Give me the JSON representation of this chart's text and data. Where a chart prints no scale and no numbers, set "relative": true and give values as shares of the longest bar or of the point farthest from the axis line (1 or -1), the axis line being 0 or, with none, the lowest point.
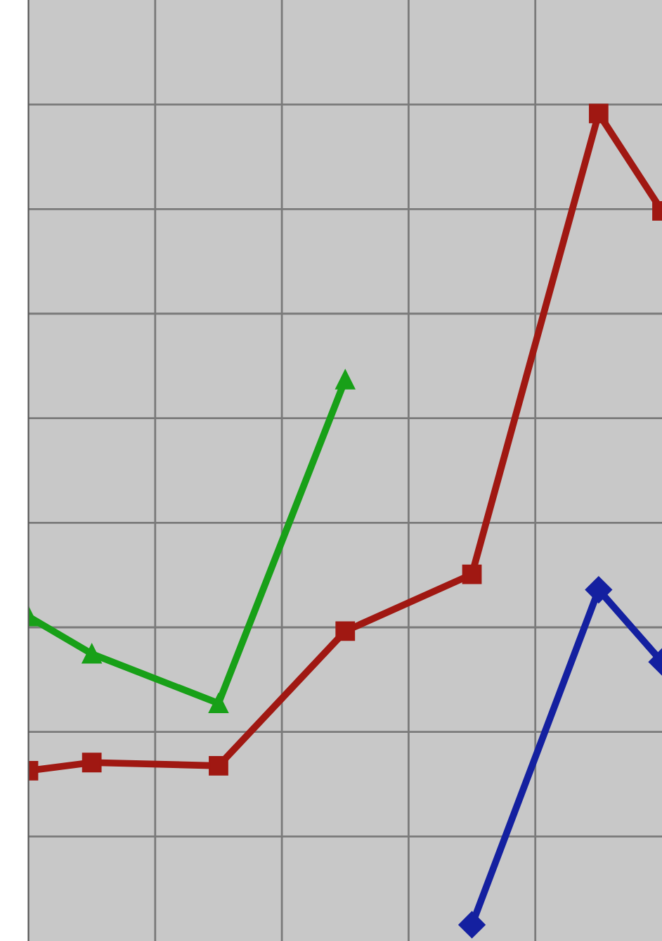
{
  "chart_data": {
    "type": "line",
    "relative": true,
    "grid": true,
    "categories": [
      null,
      null,
      null,
      null,
      null,
      null,
      null,
      null,
      null,
      null,
      null
    ],
    "series": [
      {
        "color": "#a01812",
        "marker": "square",
        "values": [
          0.19,
          0.2,
          null,
          0.196,
          null,
          0.362,
          null,
          0.432,
          null,
          1,
          0.88
        ]
      },
      {
        "color": "#18a018",
        "marker": "triangle",
        "values": [
          0.38,
          0.334,
          null,
          0.273,
          null,
          0.672,
          null,
          null,
          null,
          null,
          null
        ]
      },
      {
        "color": "#1420a0",
        "marker": "diamond",
        "values": [
          null,
          null,
          null,
          null,
          null,
          null,
          null,
          0,
          null,
          0.413,
          0.324
        ]
      }
    ]
  }
}
